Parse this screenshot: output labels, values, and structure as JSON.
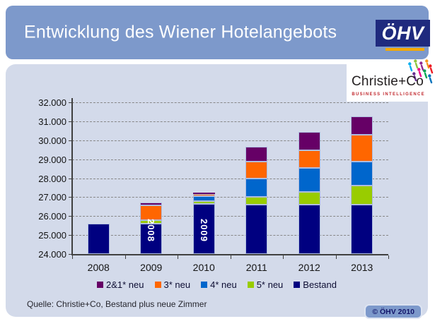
{
  "header": {
    "title": "Entwicklung des Wiener Hotelangebots",
    "bg_color": "#7D99CB",
    "oehv_logo": {
      "text": "ÖHV",
      "bg": "#1F2A7E",
      "underline": "#F5A800"
    }
  },
  "panel": {
    "bg_color": "#D3DAEA"
  },
  "christie_logo": {
    "name": "Christie+Co",
    "tagline": "BUSINESS INTELLIGENCE"
  },
  "chart_data": {
    "type": "bar",
    "stacked": true,
    "title": "",
    "xlabel": "",
    "ylabel": "",
    "categories": [
      "2008",
      "2009",
      "2010",
      "2011",
      "2012",
      "2013"
    ],
    "y_axis": {
      "min": 24000,
      "max": 32000,
      "step": 1000,
      "tick_labels": [
        "24.000",
        "25.000",
        "26.000",
        "27.000",
        "28.000",
        "29.000",
        "30.000",
        "31.000",
        "32.000"
      ]
    },
    "grid": "dashed horizontal",
    "series": [
      {
        "name": "Bestand",
        "color": "#000080",
        "absolute": true,
        "values": [
          25600,
          25600,
          26650,
          26600,
          26600,
          26600
        ]
      },
      {
        "name": "5* neu",
        "color": "#99CC00",
        "values": [
          0,
          200,
          150,
          420,
          660,
          1000
        ]
      },
      {
        "name": "4* neu",
        "color": "#0066CC",
        "values": [
          0,
          0,
          250,
          980,
          1270,
          1270
        ]
      },
      {
        "name": "3* neu",
        "color": "#FF6600",
        "values": [
          0,
          750,
          130,
          870,
          940,
          1420
        ]
      },
      {
        "name": "2&1* neu",
        "color": "#660066",
        "values": [
          0,
          150,
          50,
          790,
          970,
          980
        ]
      }
    ],
    "totals": [
      25600,
      26700,
      27230,
      29660,
      30440,
      31270
    ],
    "legend_order": [
      "2&1* neu",
      "3* neu",
      "4* neu",
      "5* neu",
      "Bestand"
    ],
    "legend_position": "bottom",
    "bar_labels": [
      {
        "category": "2009",
        "text": "2008"
      },
      {
        "category": "2010",
        "text": "2009"
      }
    ]
  },
  "footer": {
    "source": "Quelle: Christie+Co, Bestand plus neue Zimmer",
    "copyright": "© ÖHV 2010"
  }
}
